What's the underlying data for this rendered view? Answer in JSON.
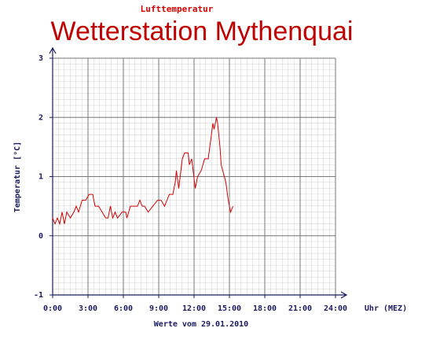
{
  "chart_data": {
    "type": "line",
    "supertitle": "Lufttemperatur",
    "title": "Wetterstation Mythenquai",
    "ylabel": "Temperatur [°C]",
    "xlabel": "Uhr (MEZ)",
    "footer": "Werte vom 29.01.2010",
    "xlim": [
      0,
      24
    ],
    "xticks": [
      {
        "value": 0,
        "label": "0:00"
      },
      {
        "value": 3,
        "label": "3:00"
      },
      {
        "value": 6,
        "label": "6:00"
      },
      {
        "value": 9,
        "label": "9:00"
      },
      {
        "value": 12,
        "label": "12:00"
      },
      {
        "value": 15,
        "label": "15:00"
      },
      {
        "value": 18,
        "label": "18:00"
      },
      {
        "value": 21,
        "label": "21:00"
      },
      {
        "value": 24,
        "label": "24:00"
      }
    ],
    "ylim": [
      -1,
      3
    ],
    "yticks": [
      -1,
      0,
      1,
      2,
      3
    ],
    "grid": true,
    "series": [
      {
        "name": "Lufttemperatur",
        "color": "#d40000",
        "x": [
          0,
          0.2,
          0.4,
          0.6,
          0.8,
          1.0,
          1.2,
          1.5,
          1.8,
          2.0,
          2.2,
          2.5,
          2.8,
          3.1,
          3.4,
          3.6,
          3.9,
          4.2,
          4.5,
          4.7,
          4.9,
          5.1,
          5.3,
          5.5,
          5.9,
          6.2,
          6.3,
          6.6,
          6.9,
          7.2,
          7.4,
          7.6,
          7.8,
          8.1,
          8.5,
          8.9,
          9.2,
          9.5,
          9.9,
          10.2,
          10.4,
          10.5,
          10.7,
          11.0,
          11.2,
          11.5,
          11.6,
          11.8,
          12.1,
          12.3,
          12.6,
          12.9,
          13.2,
          13.4,
          13.6,
          13.7,
          13.9,
          14.0,
          14.2,
          14.3,
          14.7,
          14.9,
          15.1,
          15.3
        ],
        "values": [
          0.3,
          0.2,
          0.3,
          0.2,
          0.4,
          0.2,
          0.4,
          0.3,
          0.4,
          0.5,
          0.4,
          0.6,
          0.6,
          0.7,
          0.7,
          0.5,
          0.5,
          0.4,
          0.3,
          0.3,
          0.5,
          0.3,
          0.4,
          0.3,
          0.4,
          0.4,
          0.3,
          0.5,
          0.5,
          0.5,
          0.6,
          0.5,
          0.5,
          0.4,
          0.5,
          0.6,
          0.6,
          0.5,
          0.7,
          0.7,
          0.9,
          1.1,
          0.8,
          1.3,
          1.4,
          1.4,
          1.2,
          1.3,
          0.8,
          1.0,
          1.1,
          1.3,
          1.3,
          1.6,
          1.9,
          1.8,
          2.0,
          1.9,
          1.5,
          1.2,
          0.9,
          0.6,
          0.4,
          0.5
        ]
      }
    ]
  }
}
